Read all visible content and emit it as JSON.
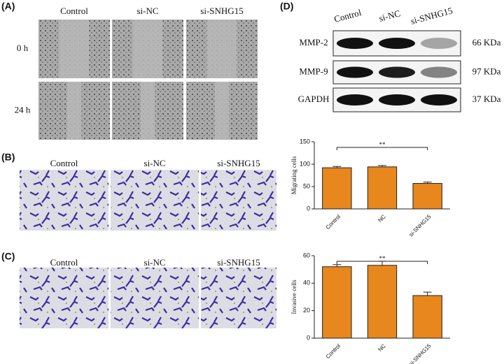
{
  "panels": {
    "A": {
      "label": "(A)",
      "columns": [
        "Control",
        "si-NC",
        "si-SNHG15"
      ],
      "rows": [
        "0 h",
        "24 h"
      ]
    },
    "B": {
      "label": "(B)",
      "columns": [
        "Control",
        "si-NC",
        "si-SNHG15"
      ]
    },
    "C": {
      "label": "(C)",
      "columns": [
        "Control",
        "si-NC",
        "si-SNHG15"
      ]
    },
    "D": {
      "label": "(D)",
      "columns": [
        "Control",
        "si-NC",
        "si-SNHG15"
      ],
      "bands": [
        {
          "name": "MMP-2",
          "size": "66 KDa"
        },
        {
          "name": "MMP-9",
          "size": "97 KDa"
        },
        {
          "name": "GAPDH",
          "size": "37 KDa"
        }
      ]
    }
  },
  "chart_data": [
    {
      "type": "bar",
      "ylabel": "Migrating cells",
      "categories": [
        "Control",
        "NC",
        "si-SNHG15"
      ],
      "values": [
        92,
        94,
        57
      ],
      "errors": [
        3,
        3,
        3
      ],
      "color": "#e8871e",
      "ylim": [
        0,
        150
      ],
      "yticks": [
        0,
        50,
        100,
        150
      ],
      "annotation": "**"
    },
    {
      "type": "bar",
      "ylabel": "Invasive cells",
      "categories": [
        "Control",
        "NC",
        "si-SNHG15"
      ],
      "values": [
        52,
        53,
        31
      ],
      "errors": [
        1.5,
        3,
        2.5
      ],
      "color": "#e8871e",
      "ylim": [
        0,
        60
      ],
      "yticks": [
        0,
        20,
        40,
        60
      ],
      "annotation": "**"
    }
  ]
}
